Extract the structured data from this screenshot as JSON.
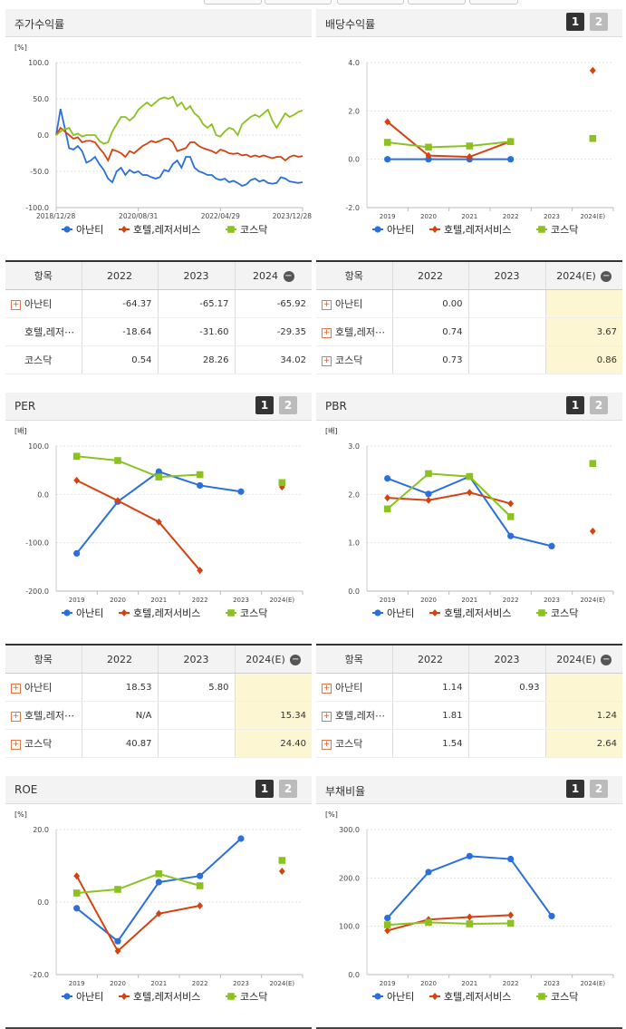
{
  "panels": {
    "stock": {
      "title": "주가수익률",
      "unit": "[%]",
      "buttons": []
    },
    "dividend": {
      "title": "배당수익률",
      "unit": "",
      "buttons": [
        "1",
        "2"
      ]
    },
    "per": {
      "title": "PER",
      "unit": "[배]",
      "buttons": [
        "1",
        "2"
      ]
    },
    "pbr": {
      "title": "PBR",
      "unit": "[배]",
      "buttons": [
        "1",
        "2"
      ]
    },
    "roe": {
      "title": "ROE",
      "unit": "[%]",
      "buttons": [
        "1",
        "2"
      ]
    },
    "debt": {
      "title": "부채비율",
      "unit": "[%]",
      "buttons": [
        "1",
        "2"
      ]
    }
  },
  "legend": [
    {
      "name": "아난티",
      "color": "#2a6fdb",
      "marker": "circle"
    },
    {
      "name": "호텔,레저서비스",
      "color": "#d4430f",
      "marker": "diamond"
    },
    {
      "name": "코스닥",
      "color": "#8cc21f",
      "marker": "square"
    }
  ],
  "tables": {
    "stock": {
      "headers": [
        "항목",
        "2022",
        "2023",
        "2024"
      ],
      "minus": "−",
      "rows": [
        {
          "label": "아난티",
          "plus": true,
          "values": [
            "-64.37",
            "-65.17",
            "-65.92"
          ]
        },
        {
          "label": "호텔,레저⋯",
          "plus": false,
          "values": [
            "-18.64",
            "-31.60",
            "-29.35"
          ]
        },
        {
          "label": "코스닥",
          "plus": false,
          "values": [
            "0.54",
            "28.26",
            "34.02"
          ]
        }
      ]
    },
    "dividend": {
      "headers": [
        "항목",
        "2022",
        "2023",
        "2024(E)"
      ],
      "minus": "−",
      "rows": [
        {
          "label": "아난티",
          "plus": true,
          "values": [
            "0.00",
            "",
            ""
          ]
        },
        {
          "label": "호텔,레저⋯",
          "plus": true,
          "values": [
            "0.74",
            "",
            "3.67"
          ]
        },
        {
          "label": "코스닥",
          "plus": true,
          "values": [
            "0.73",
            "",
            "0.86"
          ]
        }
      ]
    },
    "per": {
      "headers": [
        "항목",
        "2022",
        "2023",
        "2024(E)"
      ],
      "minus": "−",
      "rows": [
        {
          "label": "아난티",
          "plus": true,
          "values": [
            "18.53",
            "5.80",
            ""
          ]
        },
        {
          "label": "호텔,레저⋯",
          "plus": true,
          "values": [
            "N/A",
            "",
            "15.34"
          ]
        },
        {
          "label": "코스닥",
          "plus": true,
          "values": [
            "40.87",
            "",
            "24.40"
          ]
        }
      ]
    },
    "pbr": {
      "headers": [
        "항목",
        "2022",
        "2023",
        "2024(E)"
      ],
      "minus": "−",
      "rows": [
        {
          "label": "아난티",
          "plus": true,
          "values": [
            "1.14",
            "0.93",
            ""
          ]
        },
        {
          "label": "호텔,레저⋯",
          "plus": true,
          "values": [
            "1.81",
            "",
            "1.24"
          ]
        },
        {
          "label": "코스닥",
          "plus": true,
          "values": [
            "1.54",
            "",
            "2.64"
          ]
        }
      ]
    }
  },
  "chart_data": [
    {
      "id": "stock",
      "type": "line",
      "title": "주가수익률",
      "ylabel": "[%]",
      "ylim": [
        -100,
        100
      ],
      "y_ticks": [
        "100.0",
        "50.0",
        "0.0",
        "-50.0",
        "-100.0"
      ],
      "x_ticks": [
        "2018/12/28",
        "2020/08/31",
        "2022/04/29",
        "2023/12/28"
      ],
      "series": [
        {
          "name": "아난티",
          "values": [
            0,
            36,
            10,
            -18,
            -20,
            -15,
            -22,
            -38,
            -35,
            -30,
            -40,
            -48,
            -60,
            -65,
            -50,
            -45,
            -55,
            -48,
            -52,
            -50,
            -55,
            -55,
            -58,
            -60,
            -58,
            -48,
            -50,
            -40,
            -35,
            -45,
            -30,
            -30,
            -45,
            -50,
            -52,
            -55,
            -55,
            -60,
            -62,
            -60,
            -65,
            -63,
            -66,
            -70,
            -68,
            -62,
            -60,
            -64,
            -62,
            -66,
            -67,
            -66,
            -58,
            -60,
            -64,
            -65,
            -66,
            -65
          ]
        },
        {
          "name": "호텔,레저서비스",
          "values": [
            0,
            10,
            5,
            0,
            -5,
            -3,
            -10,
            -8,
            -8,
            -10,
            -18,
            -25,
            -35,
            -20,
            -22,
            -25,
            -30,
            -22,
            -25,
            -20,
            -15,
            -12,
            -8,
            -10,
            -8,
            -5,
            -5,
            -10,
            -22,
            -20,
            -18,
            -10,
            -10,
            -15,
            -18,
            -20,
            -22,
            -25,
            -20,
            -22,
            -25,
            -26,
            -25,
            -28,
            -27,
            -30,
            -28,
            -30,
            -28,
            -30,
            -32,
            -30,
            -30,
            -35,
            -30,
            -28,
            -30,
            -29
          ]
        },
        {
          "name": "코스닥",
          "values": [
            0,
            5,
            8,
            10,
            0,
            2,
            -2,
            0,
            0,
            0,
            -8,
            -12,
            -10,
            5,
            15,
            25,
            25,
            20,
            25,
            35,
            40,
            45,
            40,
            45,
            50,
            52,
            50,
            53,
            40,
            45,
            35,
            40,
            30,
            25,
            15,
            10,
            15,
            0,
            -2,
            5,
            10,
            8,
            0,
            15,
            20,
            25,
            28,
            25,
            30,
            35,
            20,
            10,
            20,
            30,
            25,
            28,
            32,
            34
          ]
        }
      ]
    },
    {
      "id": "dividend",
      "type": "line",
      "title": "배당수익률",
      "ylabel": "",
      "ylim": [
        -2,
        4
      ],
      "y_ticks": [
        "4.0",
        "2.0",
        "0.0",
        "-2.0"
      ],
      "categories": [
        "2019",
        "2020",
        "2021",
        "2022",
        "2023",
        "2024(E)"
      ],
      "series": [
        {
          "name": "아난티",
          "values": [
            0.0,
            0.0,
            0.0,
            0.0,
            null,
            null
          ]
        },
        {
          "name": "호텔,레저서비스",
          "values": [
            1.55,
            0.15,
            0.1,
            0.74,
            null,
            3.67
          ]
        },
        {
          "name": "코스닥",
          "values": [
            0.7,
            0.5,
            0.55,
            0.73,
            null,
            0.86
          ]
        }
      ]
    },
    {
      "id": "per",
      "type": "line",
      "title": "PER",
      "ylabel": "[배]",
      "ylim": [
        -200,
        100
      ],
      "y_ticks": [
        "100.0",
        "0.0",
        "-100.0",
        "-200.0"
      ],
      "categories": [
        "2019",
        "2020",
        "2021",
        "2022",
        "2023",
        "2024(E)"
      ],
      "series": [
        {
          "name": "아난티",
          "values": [
            -122,
            -15,
            47,
            18.53,
            5.8,
            null
          ]
        },
        {
          "name": "호텔,레저서비스",
          "values": [
            29,
            -13,
            -57,
            -157,
            null,
            15.34
          ]
        },
        {
          "name": "코스닥",
          "values": [
            79,
            70,
            36,
            40.87,
            null,
            24.4
          ]
        }
      ]
    },
    {
      "id": "pbr",
      "type": "line",
      "title": "PBR",
      "ylabel": "[배]",
      "ylim": [
        0,
        3
      ],
      "y_ticks": [
        "3.0",
        "2.0",
        "1.0",
        "0.0"
      ],
      "categories": [
        "2019",
        "2020",
        "2021",
        "2022",
        "2023",
        "2024(E)"
      ],
      "series": [
        {
          "name": "아난티",
          "values": [
            2.33,
            2.01,
            2.37,
            1.14,
            0.93,
            null
          ]
        },
        {
          "name": "호텔,레저서비스",
          "values": [
            1.93,
            1.88,
            2.04,
            1.81,
            null,
            1.24
          ]
        },
        {
          "name": "코스닥",
          "values": [
            1.7,
            2.43,
            2.37,
            1.54,
            null,
            2.64
          ]
        }
      ]
    },
    {
      "id": "roe",
      "type": "line",
      "title": "ROE",
      "ylabel": "[%]",
      "ylim": [
        -20,
        20
      ],
      "y_ticks": [
        "20.0",
        "0.0",
        "-20.0"
      ],
      "categories": [
        "2019",
        "2020",
        "2021",
        "2022",
        "2023",
        "2024(E)"
      ],
      "series": [
        {
          "name": "아난티",
          "values": [
            -1.7,
            -10.8,
            5.5,
            7.2,
            17.5,
            null
          ]
        },
        {
          "name": "호텔,레저서비스",
          "values": [
            7.2,
            -13.5,
            -3.2,
            -1.0,
            null,
            8.5
          ]
        },
        {
          "name": "코스닥",
          "values": [
            2.5,
            3.5,
            7.8,
            4.5,
            null,
            11.5
          ]
        }
      ]
    },
    {
      "id": "debt",
      "type": "line",
      "title": "부채비율",
      "ylabel": "[%]",
      "ylim": [
        0,
        300
      ],
      "y_ticks": [
        "300.0",
        "200.0",
        "100.0",
        "0.0"
      ],
      "categories": [
        "2019",
        "2020",
        "2021",
        "2022",
        "2023",
        "2024(E)"
      ],
      "series": [
        {
          "name": "아난티",
          "values": [
            117,
            212,
            245,
            239,
            121,
            null
          ]
        },
        {
          "name": "호텔,레저서비스",
          "values": [
            91,
            114,
            119,
            123,
            null,
            null
          ]
        },
        {
          "name": "코스닥",
          "values": [
            103,
            108,
            105,
            106,
            null,
            null
          ]
        }
      ]
    }
  ]
}
